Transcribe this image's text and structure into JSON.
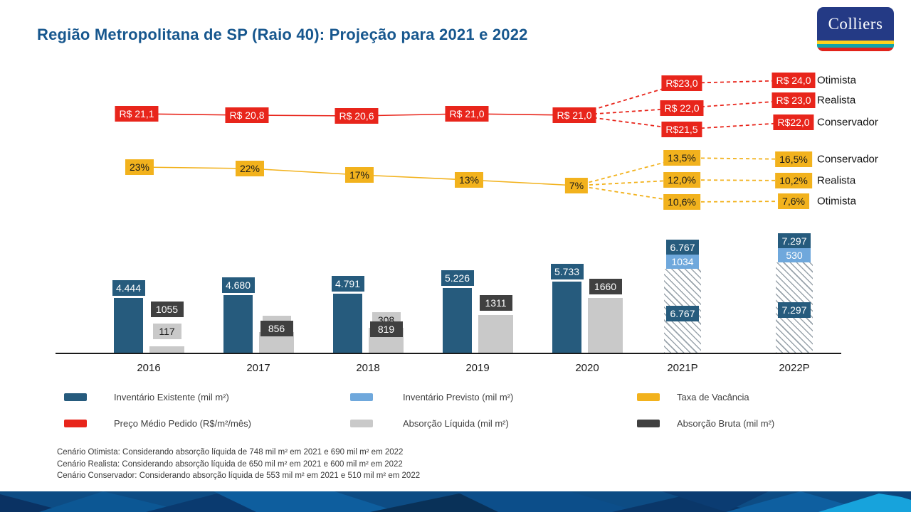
{
  "header": {
    "title": "Região Metropolitana de SP (Raio 40): Projeção para 2021 e 2022",
    "logo_text": "Colliers"
  },
  "chart_data": {
    "type": "combo",
    "categories": [
      "2016",
      "2017",
      "2018",
      "2019",
      "2020",
      "2021P",
      "2022P"
    ],
    "series": [
      {
        "name": "Inventário Existente (mil m²)",
        "type": "bar",
        "color": "#265B7D",
        "values": [
          4444,
          4680,
          4791,
          5226,
          5733,
          6767,
          7297
        ],
        "labels": [
          "4.444",
          "4.680",
          "4.791",
          "5.226",
          "5.733",
          "6.767",
          "7.297"
        ]
      },
      {
        "name": "Inventário Previsto (mil m²)",
        "type": "bar",
        "color": "#6FA8DC",
        "values": [
          null,
          null,
          null,
          null,
          null,
          1034,
          530
        ],
        "labels": [
          null,
          null,
          null,
          null,
          null,
          "1034",
          "530"
        ]
      },
      {
        "name": "Absorção Líquida (mil m²)",
        "type": "bar",
        "color": "#C9C9C9",
        "values": [
          117,
          null,
          308,
          null,
          null,
          null,
          null
        ],
        "labels": [
          "117",
          null,
          "308",
          null,
          null,
          null,
          null
        ]
      },
      {
        "name": "Absorção Bruta (mil m²)",
        "type": "label",
        "color": "#404040",
        "values": [
          1055,
          856,
          819,
          1311,
          1660,
          null,
          null
        ],
        "labels": [
          "1055",
          "856",
          "819",
          "1311",
          "1660",
          null,
          null
        ]
      },
      {
        "name": "Preço Médio Pedido (R$/m²/mês)",
        "type": "line",
        "color": "#E8251B",
        "values": [
          21.1,
          20.8,
          20.6,
          21.0,
          21.0
        ],
        "labels": [
          "R$ 21,1",
          "R$ 20,8",
          "R$ 20,6",
          "R$ 21,0",
          "R$ 21,0"
        ],
        "projections": {
          "p2021": [
            {
              "scenario": "Otimista",
              "label": "R$23,0",
              "value": 23.0
            },
            {
              "scenario": "Realista",
              "label": "R$ 22,0",
              "value": 22.0
            },
            {
              "scenario": "Conservador",
              "label": "R$21,5",
              "value": 21.5
            }
          ],
          "p2022": [
            {
              "scenario": "Otimista",
              "label": "R$ 24,0",
              "value": 24.0
            },
            {
              "scenario": "Realista",
              "label": "R$ 23,0",
              "value": 23.0
            },
            {
              "scenario": "Conservador",
              "label": "R$22,0",
              "value": 22.0
            }
          ]
        }
      },
      {
        "name": "Taxa de Vacância",
        "type": "line",
        "color": "#F2B21D",
        "values": [
          23,
          22,
          17,
          13,
          7
        ],
        "labels": [
          "23%",
          "22%",
          "17%",
          "13%",
          "7%"
        ],
        "projections": {
          "p2021": [
            {
              "scenario": "Conservador",
              "label": "13,5%",
              "value": 13.5
            },
            {
              "scenario": "Realista",
              "label": "12,0%",
              "value": 12.0
            },
            {
              "scenario": "Otimista",
              "label": "10,6%",
              "value": 10.6
            }
          ],
          "p2022": [
            {
              "scenario": "Conservador",
              "label": "16,5%",
              "value": 16.5
            },
            {
              "scenario": "Realista",
              "label": "10,2%",
              "value": 10.2
            },
            {
              "scenario": "Otimista",
              "label": "7,6%",
              "value": 7.6
            }
          ]
        }
      }
    ]
  },
  "legend": {
    "items": [
      {
        "label": "Inventário Existente (mil m²)",
        "color": "#265B7D"
      },
      {
        "label": "Inventário Previsto (mil m²)",
        "color": "#6FA8DC"
      },
      {
        "label": "Taxa de Vacância",
        "color": "#F2B21D"
      },
      {
        "label": "Preço Médio Pedido (R$/m²/mês)",
        "color": "#E8251B"
      },
      {
        "label": "Absorção Líquida (mil m²)",
        "color": "#C9C9C9"
      },
      {
        "label": "Absorção Bruta (mil m²)",
        "color": "#404040"
      }
    ]
  },
  "footnotes": {
    "lines": [
      "Cenário Otimista: Considerando absorção líquida de 748 mil m² em 2021 e 690 mil m² em 2022",
      "Cenário Realista: Considerando absorção líquida de 650 mil m² em 2021 e 600 mil m² em 2022",
      "Cenário Conservador: Considerando absorção líquida de 553 mil m² em 2021 e 510 mil m² em 2022"
    ]
  }
}
